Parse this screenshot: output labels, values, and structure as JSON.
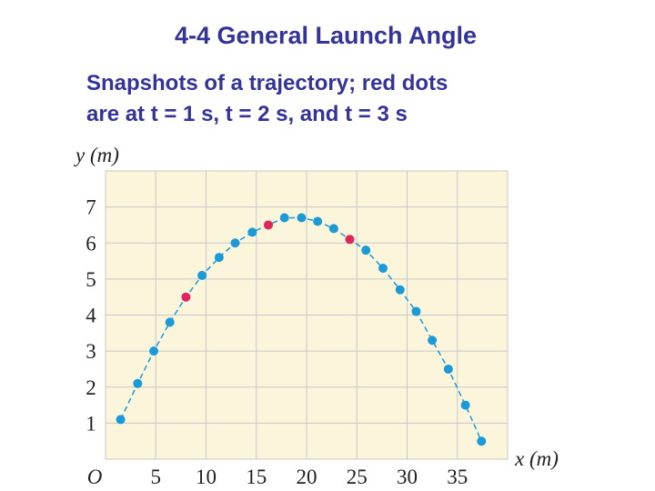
{
  "chart_data": {
    "type": "scatter",
    "title": "4-4 General Launch Angle",
    "subtitle": [
      "Snapshots of a trajectory; red dots",
      "are at t = 1 s, t = 2 s, and t = 3 s"
    ],
    "x_label": "x (m)",
    "y_label": "y (m)",
    "xlim": [
      0,
      40
    ],
    "ylim": [
      0,
      8
    ],
    "xticks": [
      {
        "value": 0,
        "label": "O"
      },
      5,
      10,
      15,
      20,
      25,
      30,
      35
    ],
    "yticks": [
      1,
      2,
      3,
      4,
      5,
      6,
      7
    ],
    "grid": true,
    "line_style": "dashed",
    "series": [
      {
        "color": "#1a9ad6",
        "x": [
          1.5,
          3.2,
          4.8,
          6.4,
          9.6,
          11.3,
          12.9,
          14.6,
          17.8,
          19.5,
          21.1,
          22.7,
          25.9,
          27.6,
          29.3,
          30.9,
          32.5,
          34.1,
          35.8,
          37.4
        ],
        "values": [
          1.1,
          2.1,
          3.0,
          3.8,
          5.1,
          5.6,
          6.0,
          6.3,
          6.7,
          6.7,
          6.6,
          6.4,
          5.8,
          5.3,
          4.7,
          4.1,
          3.3,
          2.5,
          1.5,
          0.5
        ]
      },
      {
        "color": "#e0245e",
        "x": [
          8.0,
          16.2,
          24.3
        ],
        "values": [
          4.5,
          6.5,
          6.1
        ]
      }
    ]
  }
}
